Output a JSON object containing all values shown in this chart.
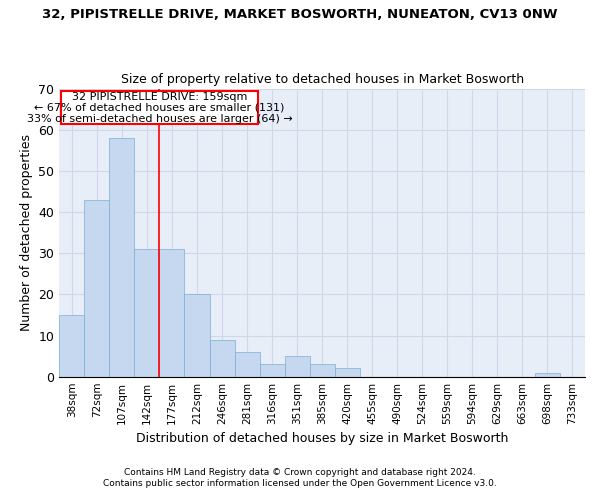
{
  "title": "32, PIPISTRELLE DRIVE, MARKET BOSWORTH, NUNEATON, CV13 0NW",
  "subtitle": "Size of property relative to detached houses in Market Bosworth",
  "xlabel": "Distribution of detached houses by size in Market Bosworth",
  "ylabel": "Number of detached properties",
  "bar_color": "#c5d8ef",
  "bar_edge_color": "#7aafd4",
  "grid_color": "#d0d8e8",
  "background_color": "#e8eef8",
  "bin_labels": [
    "38sqm",
    "72sqm",
    "107sqm",
    "142sqm",
    "177sqm",
    "212sqm",
    "246sqm",
    "281sqm",
    "316sqm",
    "351sqm",
    "385sqm",
    "420sqm",
    "455sqm",
    "490sqm",
    "524sqm",
    "559sqm",
    "594sqm",
    "629sqm",
    "663sqm",
    "698sqm",
    "733sqm"
  ],
  "bar_values": [
    15,
    43,
    58,
    31,
    31,
    20,
    9,
    6,
    3,
    5,
    3,
    2,
    0,
    0,
    0,
    0,
    0,
    0,
    0,
    1,
    0
  ],
  "red_line_x": 3.5,
  "annotation_title": "32 PIPISTRELLE DRIVE: 159sqm",
  "annotation_line1": "← 67% of detached houses are smaller (131)",
  "annotation_line2": "33% of semi-detached houses are larger (64) →",
  "ylim": [
    0,
    70
  ],
  "yticks": [
    0,
    10,
    20,
    30,
    40,
    50,
    60,
    70
  ],
  "footer_line1": "Contains HM Land Registry data © Crown copyright and database right 2024.",
  "footer_line2": "Contains public sector information licensed under the Open Government Licence v3.0."
}
